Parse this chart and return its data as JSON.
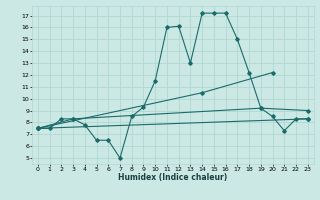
{
  "xlabel": "Humidex (Indice chaleur)",
  "xlim": [
    -0.5,
    23.5
  ],
  "ylim": [
    4.5,
    17.8
  ],
  "xticks": [
    0,
    1,
    2,
    3,
    4,
    5,
    6,
    7,
    8,
    9,
    10,
    11,
    12,
    13,
    14,
    15,
    16,
    17,
    18,
    19,
    20,
    21,
    22,
    23
  ],
  "yticks": [
    5,
    6,
    7,
    8,
    9,
    10,
    11,
    12,
    13,
    14,
    15,
    16,
    17
  ],
  "bg_color": "#cce8e4",
  "grid_color": "#b0d8d2",
  "line_color": "#1a6b6b",
  "lines": [
    {
      "x": [
        0,
        1,
        2,
        3,
        4,
        5,
        6,
        7,
        8,
        9,
        10,
        11,
        12,
        13,
        14,
        15,
        16,
        17,
        18,
        19,
        20,
        21,
        22,
        23
      ],
      "y": [
        7.5,
        7.5,
        8.3,
        8.3,
        7.8,
        6.5,
        6.5,
        5.0,
        8.5,
        9.3,
        11.5,
        16.0,
        16.1,
        13.0,
        17.2,
        17.2,
        17.2,
        15.0,
        12.2,
        9.2,
        8.5,
        7.3,
        8.3,
        8.3
      ]
    },
    {
      "x": [
        0,
        23
      ],
      "y": [
        7.5,
        8.3
      ]
    },
    {
      "x": [
        0,
        14,
        20
      ],
      "y": [
        7.5,
        10.5,
        12.2
      ]
    },
    {
      "x": [
        0,
        3,
        19,
        23
      ],
      "y": [
        7.5,
        8.3,
        9.2,
        9.0
      ]
    }
  ]
}
